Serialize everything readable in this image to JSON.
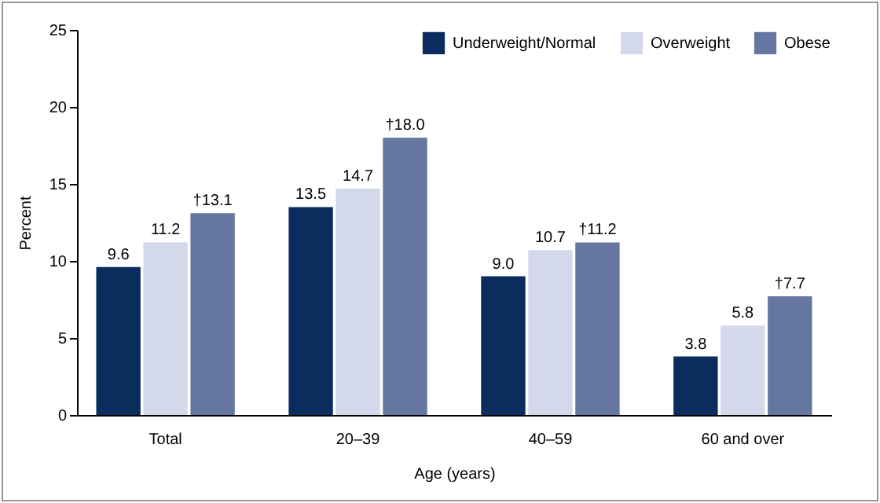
{
  "chart_data": {
    "type": "bar",
    "categories": [
      "Total",
      "20–39",
      "40–59",
      "60 and over"
    ],
    "xlabel": "Age (years)",
    "ylabel": "Percent",
    "ylim": [
      0,
      25
    ],
    "yticks": [
      0,
      5,
      10,
      15,
      20,
      25
    ],
    "legend": "top right",
    "series": [
      {
        "name": "Underweight/Normal",
        "color": "#0b2d5e",
        "values": [
          9.6,
          13.5,
          9.0,
          3.8
        ],
        "value_labels": [
          "9.6",
          "13.5",
          "9.0",
          "3.8"
        ]
      },
      {
        "name": "Overweight",
        "color": "#d3d9ea",
        "values": [
          11.2,
          14.7,
          10.7,
          5.8
        ],
        "value_labels": [
          "11.2",
          "14.7",
          "10.7",
          "5.8"
        ]
      },
      {
        "name": "Obese",
        "color": "#6577a0",
        "values": [
          13.1,
          18.0,
          11.2,
          7.7
        ],
        "value_labels": [
          "†13.1",
          "†18.0",
          "†11.2",
          "†7.7"
        ]
      }
    ]
  }
}
